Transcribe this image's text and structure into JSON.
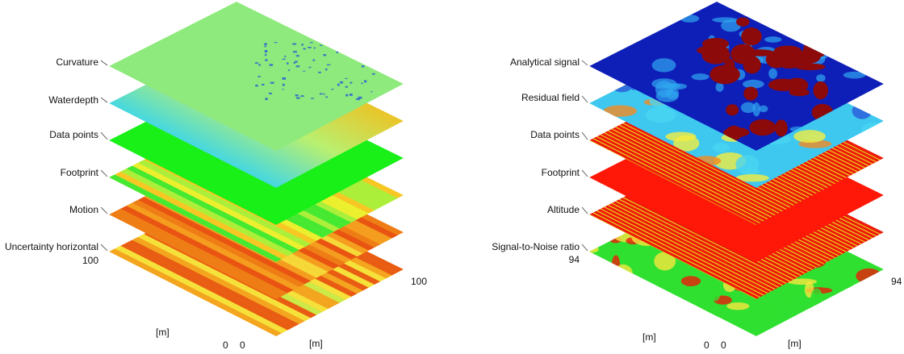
{
  "panels": [
    {
      "id": "left",
      "layers": [
        {
          "label": "Curvature",
          "fill": "#8eea7c",
          "texture": "speckle",
          "speckle_color": "#2a5bd6"
        },
        {
          "label": "Waterdepth",
          "fill": "#5fd8f0",
          "texture": "gradient",
          "stops": [
            "#2e63d8",
            "#34d4f2",
            "#b8f070",
            "#f0c020",
            "#e84c10"
          ]
        },
        {
          "label": "Data points",
          "fill": "#18f018",
          "texture": "flat"
        },
        {
          "label": "Footprint",
          "fill": "#c8f040",
          "texture": "stripes",
          "stops": [
            "#2fe82f",
            "#a6ef3a",
            "#f2ef2a",
            "#ffc020"
          ]
        },
        {
          "label": "Motion",
          "fill": "#f08a1a",
          "texture": "stripes",
          "stops": [
            "#e84a12",
            "#f5a020",
            "#f7e640",
            "#ef7a16"
          ]
        },
        {
          "label": "Uncertainty horizontal",
          "fill": "#f0c020",
          "texture": "stripes",
          "stops": [
            "#e84a12",
            "#f5a020",
            "#f7e640",
            "#c6f050"
          ]
        }
      ],
      "axis": {
        "left_value": "100",
        "right_value": "100",
        "origin_left": "0",
        "origin_right": "0",
        "unit_left": "[m]",
        "unit_right": "[m]"
      }
    },
    {
      "id": "right",
      "layers": [
        {
          "label": "Analytical signal",
          "fill": "#0e1fb8",
          "texture": "blobs",
          "blob_color": "#8c0a0a"
        },
        {
          "label": "Residual field",
          "fill": "#3ec8f0",
          "texture": "noise",
          "stops": [
            "#2a5ad8",
            "#48d6f2",
            "#f2ee40",
            "#f58a20"
          ]
        },
        {
          "label": "Data points",
          "fill": "#ee1a0a",
          "texture": "lines",
          "line_color": "#e6e020"
        },
        {
          "label": "Footprint",
          "fill": "#ff1808",
          "texture": "flat"
        },
        {
          "label": "Altitude",
          "fill": "#ee1a0a",
          "texture": "lines",
          "line_color": "#e6e020"
        },
        {
          "label": "Signal-to-Noise ratio",
          "fill": "#30e030",
          "texture": "mottled",
          "stops": [
            "#ee1a0a",
            "#f7e640",
            "#30e030"
          ]
        }
      ],
      "axis": {
        "left_value": "94",
        "right_value": "94",
        "origin_left": "0",
        "origin_right": "0",
        "unit_left": "[m]",
        "unit_right": "[m]"
      }
    }
  ]
}
